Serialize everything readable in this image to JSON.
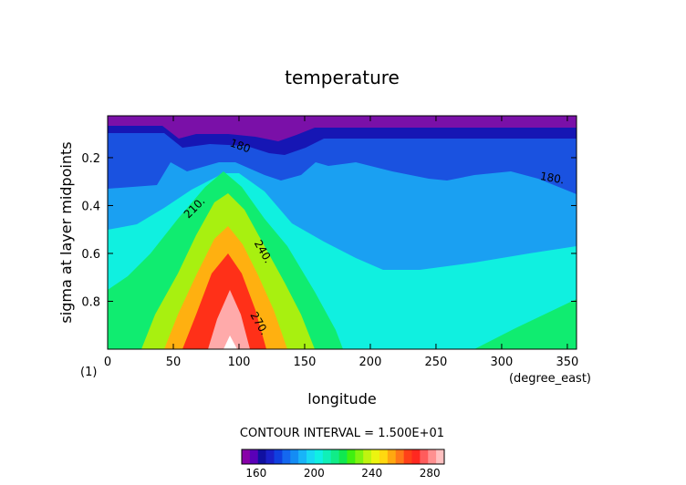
{
  "chart_data": {
    "type": "contour",
    "title": "temperature",
    "xlabel": "longitude",
    "ylabel": "sigma at layer midpoints",
    "x_unit": "(degree_east)",
    "corner_label": "(1)",
    "xlim": [
      0,
      357
    ],
    "ylim": [
      1.0,
      0.025
    ],
    "x_ticks": [
      0,
      50,
      100,
      150,
      200,
      250,
      300,
      350
    ],
    "y_ticks": [
      0.2,
      0.4,
      0.6,
      0.8
    ],
    "y_tick_labels": [
      "0.2",
      "0.4",
      "0.6",
      "0.8"
    ],
    "contour_interval_text": "CONTOUR INTERVAL = 1.500E+01",
    "contour_line_labels": [
      {
        "text": "180",
        "x": 100,
        "y": 0.165
      },
      {
        "text": "180.",
        "x": 338,
        "y": 0.3
      },
      {
        "text": "210.",
        "x": 68,
        "y": 0.42
      },
      {
        "text": "240.",
        "x": 116,
        "y": 0.6
      },
      {
        "text": "270.",
        "x": 113,
        "y": 0.9
      }
    ],
    "fill_levels": [
      150,
      155,
      160,
      165,
      170,
      175,
      180,
      185,
      190,
      195,
      200,
      205,
      210,
      215,
      220,
      225,
      230,
      235,
      240,
      245,
      250,
      255,
      260,
      265,
      270,
      275,
      280,
      285,
      290
    ],
    "colorbar": {
      "tick_values": [
        160,
        200,
        240,
        280
      ],
      "tick_labels": [
        "160",
        "200",
        "240",
        "280"
      ],
      "colors": [
        "#8800a8",
        "#5a00b8",
        "#1010a0",
        "#1a20c8",
        "#1040e0",
        "#1468f0",
        "#148cf4",
        "#18b4f8",
        "#18d8f4",
        "#10f0e4",
        "#10f0b8",
        "#10ec88",
        "#10e850",
        "#40f010",
        "#80f410",
        "#c0f410",
        "#ecf410",
        "#ffd810",
        "#ffa810",
        "#ff7818",
        "#ff4018",
        "#ff2820",
        "#ff5c5c",
        "#ff9090",
        "#ffc0c0"
      ]
    },
    "colors": {
      "band_150_165": "#7a10a8",
      "band_165_180": "#1616b4",
      "band_180_190": "#1a52e0",
      "band_190_200": "#1aa0f2",
      "band_200_210": "#10f0e0",
      "band_210_225": "#10ec70",
      "band_225_240": "#a8f010",
      "band_240_255": "#ffb010",
      "band_255_270": "#ff3018",
      "band_270_plus": "#ffaaaa"
    }
  }
}
